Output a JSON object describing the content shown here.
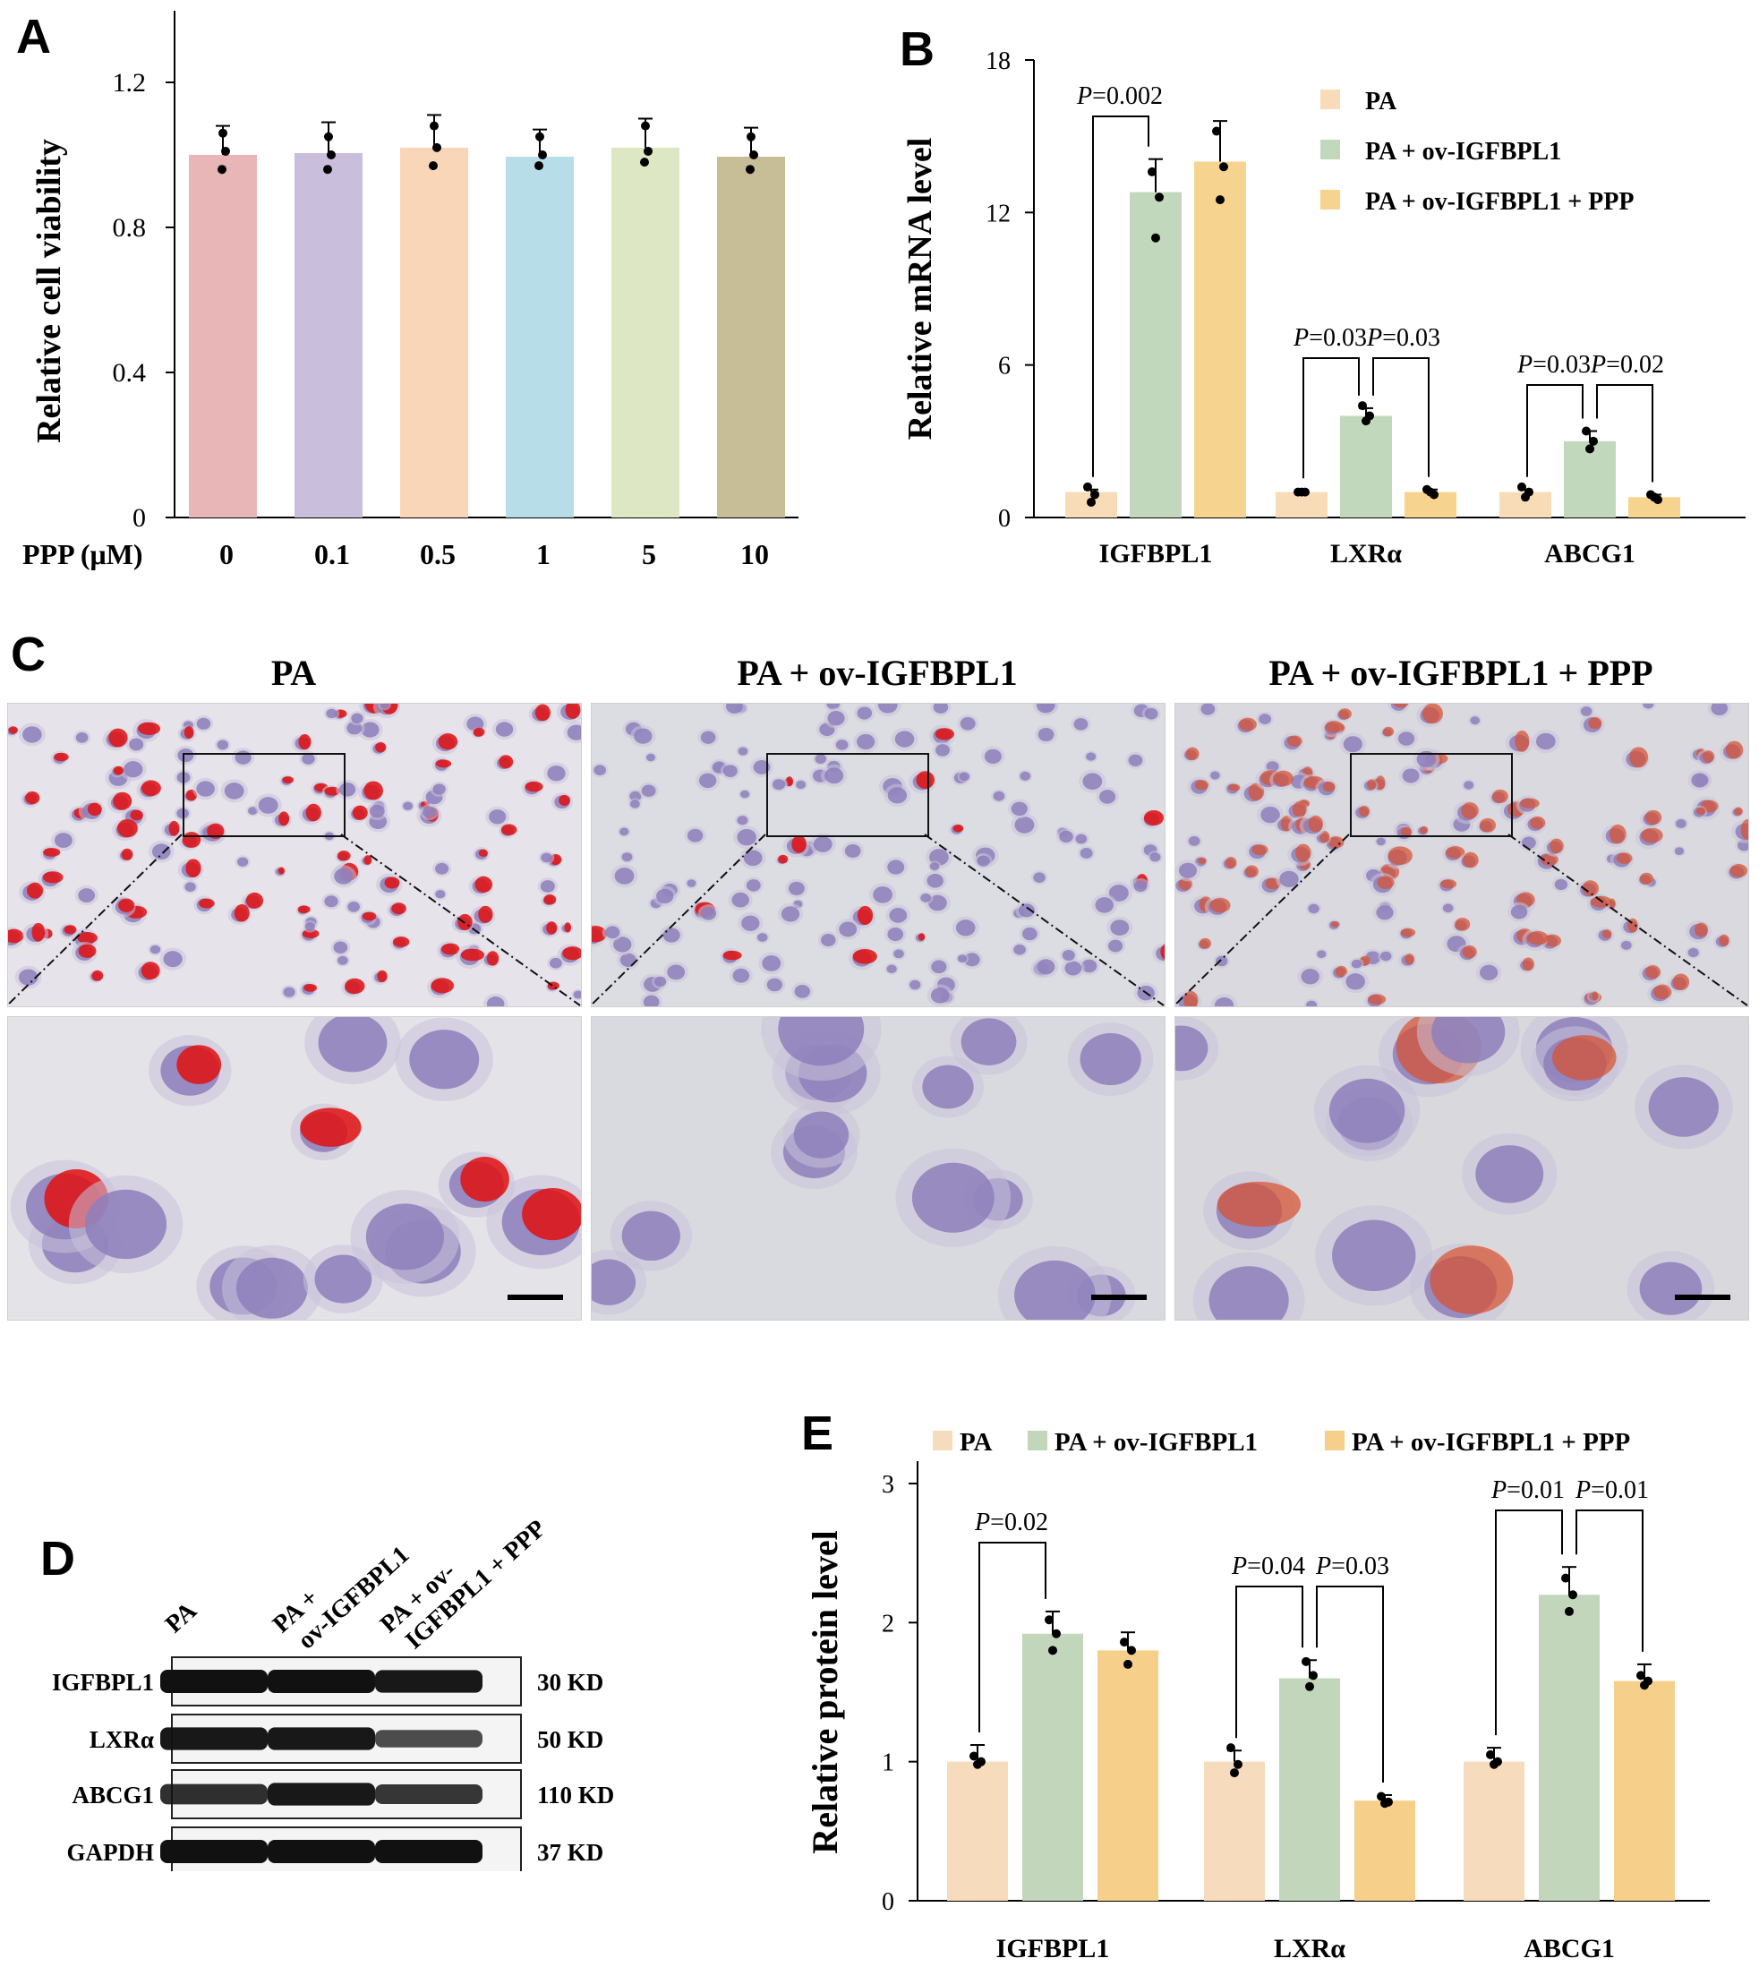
{
  "panels": {
    "A": "A",
    "B": "B",
    "C": "C",
    "D": "D",
    "E": "E"
  },
  "chart_data": [
    {
      "id": "A",
      "type": "bar",
      "categories": [
        "0",
        "0.1",
        "0.5",
        "1",
        "5",
        "10"
      ],
      "values": [
        1.0,
        1.005,
        1.02,
        0.995,
        1.02,
        0.995
      ],
      "errors": [
        0.08,
        0.085,
        0.09,
        0.075,
        0.08,
        0.08
      ],
      "points": [
        [
          1.06,
          1.01,
          0.96
        ],
        [
          1.05,
          1.0,
          0.96
        ],
        [
          1.08,
          1.02,
          0.97
        ],
        [
          1.05,
          1.0,
          0.97
        ],
        [
          1.08,
          1.01,
          0.98
        ],
        [
          1.05,
          1.0,
          0.96
        ]
      ],
      "colors": [
        "#e8b6b6",
        "#c9bfdd",
        "#f9d6b8",
        "#b7dde8",
        "#dde7c3",
        "#c7bd96"
      ],
      "xlabel": "PPP (μM)",
      "ylabel": "Relative cell viability",
      "ylim": [
        0,
        1.2
      ],
      "yticks": [
        "0",
        "0.4",
        "0.8",
        "1.2"
      ],
      "grid": false
    },
    {
      "id": "B",
      "type": "bar",
      "categories": [
        "IGFBPL1",
        "LXRα",
        "ABCG1"
      ],
      "series": [
        {
          "name": "PA",
          "color": "#f8dcb8",
          "values": [
            1.0,
            1.0,
            1.0
          ],
          "errors": [
            0.1,
            0.05,
            0.1
          ],
          "points": [
            [
              1.2,
              0.9,
              0.6
            ],
            [
              1.0,
              1.0,
              1.0
            ],
            [
              1.2,
              1.0,
              0.8
            ]
          ]
        },
        {
          "name": "PA + ov-IGFBPL1",
          "color": "#c2d8bc",
          "values": [
            12.8,
            4.0,
            3.0
          ],
          "errors": [
            1.3,
            0.3,
            0.4
          ],
          "points": [
            [
              13.6,
              12.6,
              11.0
            ],
            [
              4.4,
              4.0,
              3.8
            ],
            [
              3.4,
              3.0,
              2.7
            ]
          ]
        },
        {
          "name": "PA + ov-IGFBPL1 + PPP",
          "color": "#f6d38e",
          "values": [
            14.0,
            1.0,
            0.8
          ],
          "errors": [
            1.6,
            0.1,
            0.1
          ],
          "points": [
            [
              15.2,
              13.8,
              12.5
            ],
            [
              1.1,
              0.9,
              1.0
            ],
            [
              0.9,
              0.7,
              0.8
            ]
          ]
        }
      ],
      "ylabel": "Relative mRNA level",
      "ylim": [
        0,
        18
      ],
      "yticks": [
        "0",
        "6",
        "12",
        "18"
      ],
      "legend": "top-right",
      "annotations": [
        {
          "text": "P=0.002",
          "pair": [
            0,
            0,
            1
          ]
        },
        {
          "text": "P=0.03",
          "pair": [
            1,
            0,
            1
          ]
        },
        {
          "text": "P=0.03",
          "pair": [
            1,
            1,
            2
          ]
        },
        {
          "text": "P=0.03",
          "pair": [
            2,
            0,
            1
          ]
        },
        {
          "text": "P=0.02",
          "pair": [
            2,
            1,
            2
          ]
        }
      ]
    },
    {
      "id": "E",
      "type": "bar",
      "categories": [
        "IGFBPL1",
        "LXRα",
        "ABCG1"
      ],
      "series": [
        {
          "name": "PA",
          "color": "#f6dcbc",
          "values": [
            1.0,
            1.0,
            1.0
          ],
          "errors": [
            0.12,
            0.08,
            0.1
          ],
          "points": [
            [
              1.04,
              1.0,
              0.98
            ],
            [
              1.1,
              0.98,
              0.92
            ],
            [
              1.05,
              1.0,
              0.98
            ]
          ]
        },
        {
          "name": "PA + ov-IGFBPL1",
          "color": "#c2d6bc",
          "values": [
            1.92,
            1.6,
            2.2
          ],
          "errors": [
            0.16,
            0.13,
            0.2
          ],
          "points": [
            [
              2.02,
              1.92,
              1.8
            ],
            [
              1.72,
              1.62,
              1.54
            ],
            [
              2.32,
              2.2,
              2.08
            ]
          ]
        },
        {
          "name": "PA + ov-IGFBPL1 + PPP",
          "color": "#f6d08a",
          "values": [
            1.8,
            0.72,
            1.58
          ],
          "errors": [
            0.13,
            0.04,
            0.12
          ],
          "points": [
            [
              1.86,
              1.8,
              1.7
            ],
            [
              0.75,
              0.71,
              0.7
            ],
            [
              1.62,
              1.58,
              1.55
            ]
          ]
        }
      ],
      "ylabel": "Relative protein level",
      "ylim": [
        0,
        3
      ],
      "yticks": [
        "0",
        "1",
        "2",
        "3"
      ],
      "legend": "top",
      "annotations": [
        {
          "text": "P=0.02",
          "pair": [
            0,
            0,
            1
          ]
        },
        {
          "text": "P=0.04",
          "pair": [
            1,
            0,
            1
          ]
        },
        {
          "text": "P=0.03",
          "pair": [
            1,
            1,
            2
          ]
        },
        {
          "text": "P=0.01",
          "pair": [
            2,
            0,
            1
          ]
        },
        {
          "text": "P=0.01",
          "pair": [
            2,
            1,
            2
          ]
        }
      ]
    }
  ],
  "panelC": {
    "titles": [
      "PA",
      "PA + ov-IGFBPL1",
      "PA + ov-IGFBPL1 + PPP"
    ]
  },
  "blot": {
    "lanes": [
      "PA",
      "PA + ov-IGFBPL1",
      "PA + ov-IGFBPL1 + PPP"
    ],
    "lane_lines": [
      [
        "PA"
      ],
      [
        "PA +",
        "ov-IGFBPL1"
      ],
      [
        "PA + ov-",
        "IGFBPL1 + PPP"
      ]
    ],
    "rows": [
      {
        "protein": "IGFBPL1",
        "size": "30 KD",
        "intensity": [
          1.0,
          1.0,
          0.95
        ]
      },
      {
        "protein": "LXRα",
        "size": "50 KD",
        "intensity": [
          0.95,
          0.95,
          0.6
        ]
      },
      {
        "protein": "ABCG1",
        "size": "110 KD",
        "intensity": [
          0.8,
          0.95,
          0.75
        ]
      },
      {
        "protein": "GAPDH",
        "size": "37 KD",
        "intensity": [
          1.0,
          1.0,
          1.0
        ]
      }
    ]
  }
}
